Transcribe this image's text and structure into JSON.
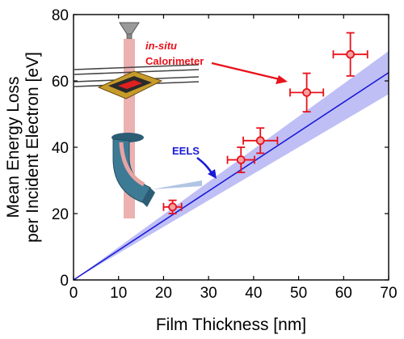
{
  "chart_data": {
    "type": "scatter",
    "title": "",
    "xlabel": "Film Thickness [nm]",
    "ylabel_line1": "Mean Energy Loss",
    "ylabel_line2": "per Incident Electron [eV]",
    "xlim": [
      0,
      70
    ],
    "ylim": [
      0,
      80
    ],
    "xticks": [
      "0",
      "10",
      "20",
      "30",
      "40",
      "50",
      "60",
      "70"
    ],
    "yticks": [
      "0",
      "20",
      "40",
      "60",
      "80"
    ],
    "grid": false,
    "series": [
      {
        "name": "in-situ Calorimeter",
        "type": "scatter",
        "color": "#e8121b",
        "points": [
          {
            "x": 22,
            "y": 22,
            "xerr": 2,
            "yerr": 2
          },
          {
            "x": 37.2,
            "y": 36.2,
            "xerr": 3,
            "yerr": 3.8
          },
          {
            "x": 41.5,
            "y": 42,
            "xerr": 3.8,
            "yerr": 3.8
          },
          {
            "x": 51.8,
            "y": 56.5,
            "xerr": 3.7,
            "yerr": 5.8
          },
          {
            "x": 61.5,
            "y": 68,
            "xerr": 3.8,
            "yerr": 6.5
          }
        ]
      },
      {
        "name": "EELS",
        "type": "line",
        "color": "#1a1ad8",
        "band_color": "#8a8aee",
        "x": [
          0,
          70
        ],
        "y": [
          0,
          62.5
        ],
        "band_upper": [
          0,
          69
        ],
        "band_lower": [
          0,
          56
        ]
      }
    ],
    "annotations": {
      "calorimeter_line1": "in-situ",
      "calorimeter_line2": "Calorimeter",
      "eels": "EELS"
    }
  }
}
